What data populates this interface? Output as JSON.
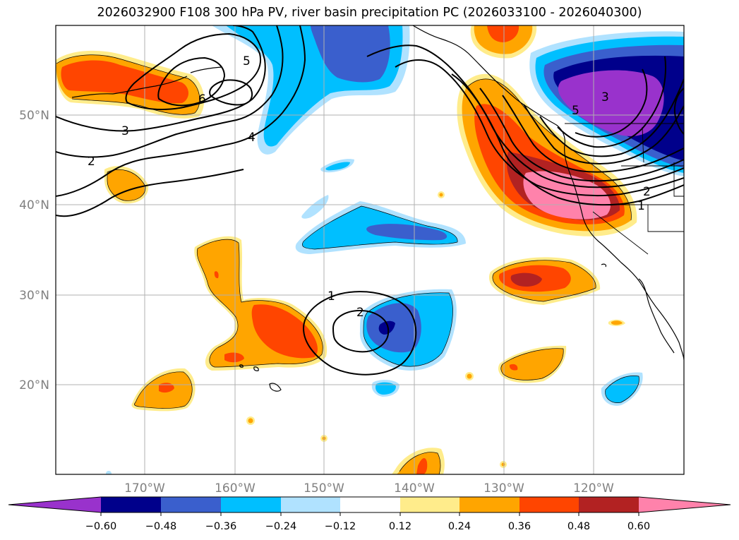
{
  "title": "2026032900 F108 300 hPa PV, river basin precipitation PC (2026033100 - 2026040300)",
  "map": {
    "lat_labels": [
      "50°N",
      "40°N",
      "30°N",
      "20°N"
    ],
    "lon_labels": [
      "170°W",
      "160°W",
      "150°W",
      "140°W",
      "130°W",
      "120°W"
    ],
    "grid_color": "#b0b0b0",
    "label_color": "#808080"
  },
  "contour_labels": [
    "2",
    "3",
    "4",
    "5",
    "6",
    "1",
    "2",
    "3",
    "5",
    "2",
    "1"
  ],
  "colorbar": {
    "ticks": [
      "−0.60",
      "−0.48",
      "−0.36",
      "−0.24",
      "−0.12",
      "0.12",
      "0.24",
      "0.36",
      "0.48",
      "0.60"
    ],
    "colors": [
      "#9932cc",
      "#00008b",
      "#3a5fcd",
      "#00bfff",
      "#b0e2ff",
      "#ffffff",
      "#ffec8b",
      "#ffa500",
      "#ff4500",
      "#b22222",
      "#ff82ab"
    ]
  },
  "palette": {
    "purple": "#9932cc",
    "navy": "#00008b",
    "blue": "#3a5fcd",
    "sky": "#00bfff",
    "lightsky": "#b0e2ff",
    "yellow": "#ffec8b",
    "orange": "#ffa500",
    "orangered": "#ff4500",
    "firebrick": "#b22222",
    "pink": "#ff82ab"
  }
}
